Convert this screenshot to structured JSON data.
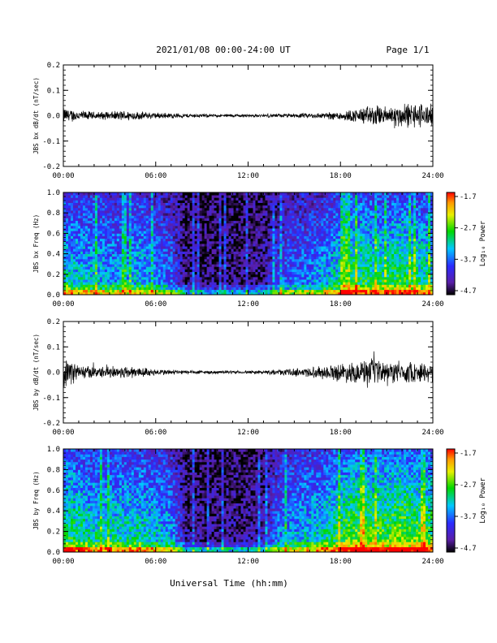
{
  "header": {
    "title": "2021/01/08  00:00-24:00 UT",
    "page": "Page 1/1"
  },
  "x_axis_title": "Universal Time (hh:mm)",
  "chart_data": [
    {
      "type": "line",
      "ylabel": "JBS bx dB/dt (nT/sec)",
      "xlim": [
        0,
        24
      ],
      "ylim": [
        -0.2,
        0.2
      ],
      "x_ticks": [
        "00:00",
        "06:00",
        "12:00",
        "18:00",
        "24:00"
      ],
      "y_ticks": [
        "0.2",
        "0.1",
        "0.0",
        "-0.1",
        "-0.2"
      ],
      "envelope_hours": [
        0,
        1,
        2,
        3,
        4,
        5,
        6,
        7,
        8,
        9,
        10,
        11,
        12,
        13,
        14,
        15,
        16,
        17,
        18,
        19,
        20,
        21,
        22,
        23,
        24
      ],
      "envelope_amplitude": [
        0.03,
        0.02,
        0.015,
        0.015,
        0.02,
        0.015,
        0.012,
        0.01,
        0.008,
        0.007,
        0.006,
        0.006,
        0.006,
        0.006,
        0.007,
        0.008,
        0.01,
        0.012,
        0.018,
        0.025,
        0.04,
        0.035,
        0.045,
        0.05,
        0.04
      ],
      "color": "#000000"
    },
    {
      "type": "heatmap",
      "ylabel": "JBS bx Freq (Hz)",
      "xlim": [
        0,
        24
      ],
      "ylim": [
        0,
        1
      ],
      "x_ticks": [
        "00:00",
        "06:00",
        "12:00",
        "18:00",
        "24:00"
      ],
      "y_ticks": [
        "1.0",
        "0.8",
        "0.6",
        "0.4",
        "0.2",
        "0.0"
      ],
      "colorbar": {
        "label": "Log₁₀ Power",
        "ticks": [
          "-1.7",
          "-2.7",
          "-3.7",
          "-4.7"
        ],
        "range": [
          -4.7,
          -1.7
        ]
      },
      "quiet_interval_hours": [
        7.3,
        13.8
      ],
      "activity_hours": [
        0,
        1,
        2,
        3,
        4,
        5,
        6,
        7,
        8,
        9,
        10,
        11,
        12,
        13,
        14,
        15,
        16,
        17,
        18,
        19,
        20,
        21,
        22,
        23,
        24
      ],
      "activity_level": [
        0.55,
        0.5,
        0.5,
        0.45,
        0.45,
        0.5,
        0.4,
        0.35,
        0.1,
        0.1,
        0.1,
        0.1,
        0.1,
        0.12,
        0.3,
        0.35,
        0.4,
        0.45,
        0.55,
        0.65,
        0.6,
        0.6,
        0.65,
        0.6,
        0.55
      ]
    },
    {
      "type": "line",
      "ylabel": "JBS by dB/dt (nT/sec)",
      "xlim": [
        0,
        24
      ],
      "ylim": [
        -0.2,
        0.2
      ],
      "x_ticks": [
        "00:00",
        "06:00",
        "12:00",
        "18:00",
        "24:00"
      ],
      "y_ticks": [
        "0.2",
        "0.1",
        "0.0",
        "-0.1",
        "-0.2"
      ],
      "envelope_hours": [
        0,
        1,
        2,
        3,
        4,
        5,
        6,
        7,
        8,
        9,
        10,
        11,
        12,
        13,
        14,
        15,
        16,
        17,
        18,
        19,
        20,
        21,
        22,
        23,
        24
      ],
      "envelope_amplitude": [
        0.06,
        0.03,
        0.02,
        0.02,
        0.025,
        0.02,
        0.012,
        0.01,
        0.008,
        0.007,
        0.006,
        0.006,
        0.006,
        0.007,
        0.01,
        0.015,
        0.02,
        0.025,
        0.035,
        0.04,
        0.05,
        0.04,
        0.04,
        0.04,
        0.035
      ],
      "color": "#000000"
    },
    {
      "type": "heatmap",
      "ylabel": "JBS by Freq (Hz)",
      "xlim": [
        0,
        24
      ],
      "ylim": [
        0,
        1
      ],
      "x_ticks": [
        "00:00",
        "06:00",
        "12:00",
        "18:00",
        "24:00"
      ],
      "y_ticks": [
        "1.0",
        "0.8",
        "0.6",
        "0.4",
        "0.2",
        "0.0"
      ],
      "colorbar": {
        "label": "Log₁₀ Power",
        "ticks": [
          "-1.7",
          "-2.7",
          "-3.7",
          "-4.7"
        ],
        "range": [
          -4.7,
          -1.7
        ]
      },
      "quiet_interval_hours": [
        7.3,
        13.8
      ],
      "activity_hours": [
        0,
        1,
        2,
        3,
        4,
        5,
        6,
        7,
        8,
        9,
        10,
        11,
        12,
        13,
        14,
        15,
        16,
        17,
        18,
        19,
        20,
        21,
        22,
        23,
        24
      ],
      "activity_level": [
        0.65,
        0.6,
        0.55,
        0.55,
        0.55,
        0.55,
        0.5,
        0.45,
        0.12,
        0.12,
        0.12,
        0.12,
        0.12,
        0.15,
        0.4,
        0.45,
        0.5,
        0.55,
        0.65,
        0.75,
        0.7,
        0.7,
        0.75,
        0.7,
        0.65
      ]
    }
  ]
}
